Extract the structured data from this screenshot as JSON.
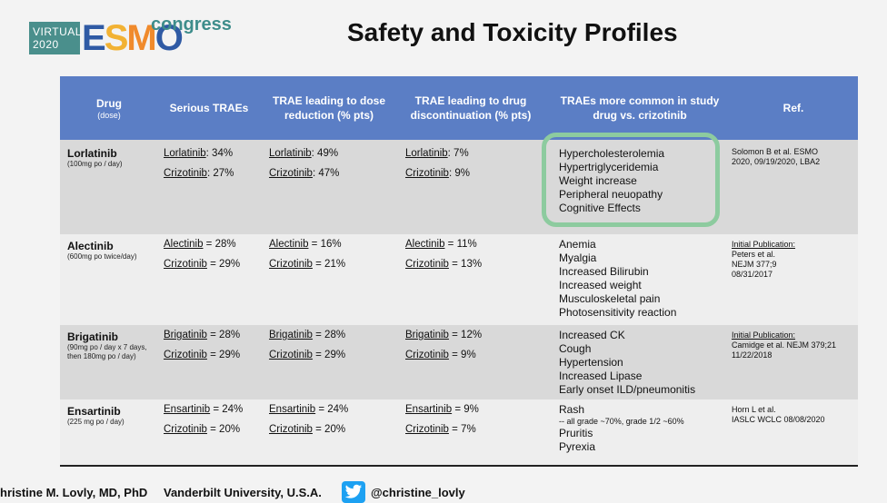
{
  "logo": {
    "virtual": "VIRTUAL",
    "year": "2020",
    "esmo": "ESMO",
    "congress": "congress"
  },
  "title": "Safety and Toxicity Profiles",
  "headers": {
    "drug": "Drug",
    "drug_sub": "(dose)",
    "serious": "Serious TRAEs",
    "dose_red": "TRAE leading to dose reduction (% pts)",
    "discont": "TRAE leading to drug discontinuation (% pts)",
    "more_common": "TRAEs more common in study drug vs. crizotinib",
    "ref": "Ref."
  },
  "rows": [
    {
      "drug": "Lorlatinib",
      "dose": "(100mg po / day)",
      "serious": [
        "Lorlatinib: 34%",
        "Crizotinib:  27%"
      ],
      "dose_red": [
        "Lorlatinib: 49%",
        "Crizotinib: 47%"
      ],
      "discont": [
        "Lorlatinib: 7%",
        "Crizotinib: 9%"
      ],
      "aes": [
        "Hypercholesterolemia",
        "Hypertriglyceridemia",
        "Weight increase",
        "Peripheral neuopathy",
        "Cognitive Effects"
      ],
      "ref": [
        "Solomon B et al. ESMO",
        "2020, 09/19/2020, LBA2"
      ]
    },
    {
      "drug": "Alectinib",
      "dose": "(600mg po twice/day)",
      "serious": [
        "Alectinib = 28%",
        "Crizotinib = 29%"
      ],
      "dose_red": [
        "Alectinib = 16%",
        "Crizotinib = 21%"
      ],
      "discont": [
        "Alectinib = 11%",
        "Crizotinib = 13%"
      ],
      "aes": [
        "Anemia",
        "Myalgia",
        "Increased Bilirubin",
        "Increased weight",
        "Musculoskeletal pain",
        "Photosensitivity reaction"
      ],
      "ref": [
        "Initial Publication:",
        "Peters et al.",
        "NEJM 377;9",
        "08/31/2017"
      ]
    },
    {
      "drug": "Brigatinib",
      "dose": "(90mg po / day x 7 days,",
      "dose2": "then 180mg po / day)",
      "serious": [
        "Brigatinib = 28%",
        "Crizotinib = 29%"
      ],
      "dose_red": [
        "Brigatinib = 28%",
        "Crizotinib = 29%"
      ],
      "discont": [
        "Brigatinib = 12%",
        "Crizotinib = 9%"
      ],
      "aes": [
        "Increased CK",
        "Cough",
        "Hypertension",
        "Increased Lipase",
        "Early onset ILD/pneumonitis"
      ],
      "ref": [
        "Initial Publication:",
        "Camidge et al. NEJM 379;21",
        "11/22/2018"
      ]
    },
    {
      "drug": "Ensartinib",
      "dose": "(225 mg po / day)",
      "serious": [
        "Ensartinib = 24%",
        "Crizotinib = 20%"
      ],
      "dose_red": [
        "Ensartinib = 24%",
        "Crizotinib = 20%"
      ],
      "discont": [
        "Ensartinib = 9%",
        "Crizotinib = 7%"
      ],
      "aes": [
        "Rash",
        "Pruritis",
        "Pyrexia"
      ],
      "ae_note": "-- all grade ~70%, grade 1/2  ~60%",
      "ref": [
        "Horn L et al.",
        "IASLC WCLC 08/08/2020"
      ]
    }
  ],
  "footer": {
    "presenter": "hristine M. Lovly, MD, PhD",
    "institution": "Vanderbilt University, U.S.A.",
    "twitter": "@christine_lovly"
  },
  "colors": {
    "header_bg": "#5b7ec5",
    "highlight": "#8dcb9f",
    "twitter": "#1da1f2"
  }
}
